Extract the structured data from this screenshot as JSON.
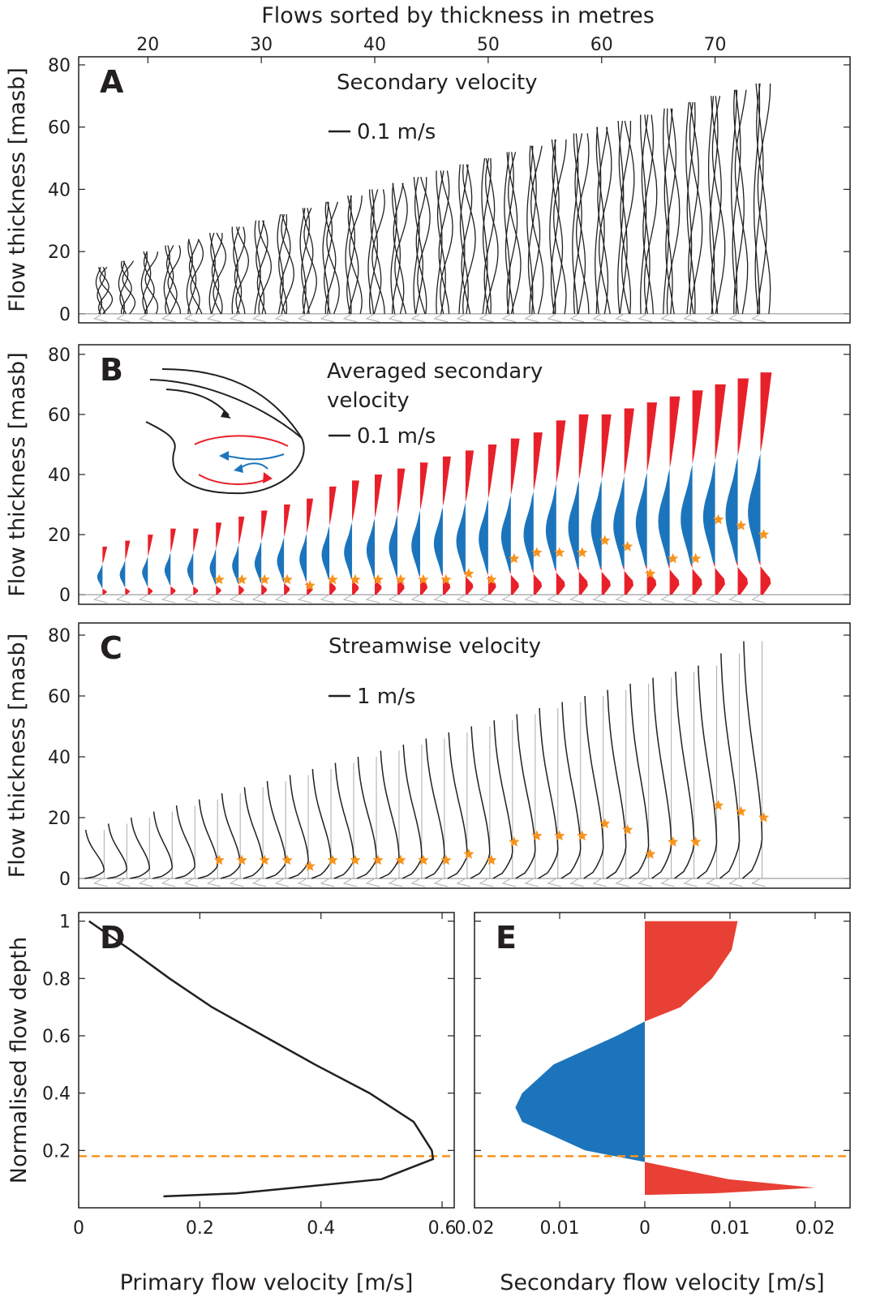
{
  "chart_data": [
    {
      "type": "line",
      "label": "A",
      "title": "Secondary velocity",
      "scale_label": "0.1 m/s",
      "xlabel": "Flows sorted by thickness in metres",
      "xlim": [
        13.9,
        81.9
      ],
      "xticks": [
        20,
        30,
        40,
        50,
        60,
        70
      ],
      "ylabel": "Flow thickness [masb]",
      "ylim": [
        -2.9,
        82.6
      ],
      "yticks": [
        0,
        20,
        40,
        60,
        80
      ],
      "x": [
        16,
        18,
        20,
        22,
        24,
        26,
        28,
        30,
        32,
        34,
        36,
        38,
        40,
        42,
        44,
        46,
        48,
        50,
        52,
        54,
        56,
        58,
        60,
        62,
        64,
        66,
        68,
        70,
        72,
        74
      ],
      "values": [
        15,
        17,
        20,
        22,
        24,
        26,
        28,
        30,
        32,
        34,
        36,
        38,
        40,
        42,
        44,
        46,
        48,
        50,
        52,
        54,
        56,
        58,
        60,
        62,
        64,
        66,
        68,
        70,
        72,
        74
      ],
      "color": "#231f20"
    },
    {
      "type": "area",
      "label": "B",
      "title": "Averaged secondary velocity",
      "scale_label": "0.1 m/s",
      "xlim": [
        13.9,
        81.9
      ],
      "ylabel": "Flow thickness [masb]",
      "ylim": [
        -3.2,
        83.2
      ],
      "yticks": [
        0,
        20,
        40,
        60,
        80
      ],
      "x": [
        16,
        18,
        20,
        22,
        24,
        26,
        28,
        30,
        32,
        34,
        36,
        38,
        40,
        42,
        44,
        46,
        48,
        50,
        52,
        54,
        56,
        58,
        60,
        62,
        64,
        66,
        68,
        70,
        72,
        74
      ],
      "values": [
        16,
        18,
        20,
        22,
        22,
        24,
        26,
        28,
        30,
        32,
        36,
        38,
        40,
        42,
        44,
        46,
        48,
        50,
        52,
        54,
        58,
        60,
        60,
        62,
        64,
        66,
        68,
        70,
        72,
        74
      ],
      "stars": [
        null,
        null,
        null,
        null,
        null,
        5,
        5,
        5,
        5,
        3,
        5,
        5,
        5,
        5,
        5,
        5,
        7,
        5,
        12,
        14,
        14,
        14,
        18,
        16,
        7,
        12,
        12,
        25,
        23,
        20
      ],
      "positive_color": "#e8202a",
      "negative_color": "#1c75bc",
      "star_color": "#f7941d"
    },
    {
      "type": "line",
      "label": "C",
      "title": "Streamwise velocity",
      "scale_label": "1 m/s",
      "xlim": [
        13.9,
        81.9
      ],
      "ylabel": "Flow thickness [masb]",
      "ylim": [
        -3.2,
        84
      ],
      "yticks": [
        0,
        20,
        40,
        60,
        80
      ],
      "x": [
        16,
        18,
        20,
        22,
        24,
        26,
        28,
        30,
        32,
        34,
        36,
        38,
        40,
        42,
        44,
        46,
        48,
        50,
        52,
        54,
        56,
        58,
        60,
        62,
        64,
        66,
        68,
        70,
        72,
        74
      ],
      "values": [
        16,
        18,
        20,
        22,
        24,
        26,
        28,
        30,
        32,
        34,
        36,
        38,
        40,
        42,
        44,
        46,
        48,
        50,
        52,
        54,
        56,
        58,
        60,
        62,
        64,
        66,
        68,
        70,
        74,
        78
      ],
      "stars": [
        null,
        null,
        null,
        null,
        null,
        6,
        6,
        6,
        6,
        4,
        6,
        6,
        6,
        6,
        6,
        6,
        8,
        6,
        12,
        14,
        14,
        14,
        18,
        16,
        8,
        12,
        12,
        24,
        22,
        20
      ],
      "color": "#231f20",
      "star_color": "#f7941d"
    },
    {
      "type": "line",
      "label": "D",
      "xlabel": "Primary flow velocity [m/s]",
      "ylabel": "Normalised flow depth",
      "xlim": [
        0,
        0.62
      ],
      "xticks": [
        0,
        0.2,
        0.4,
        0.6
      ],
      "ylim": [
        0,
        1.03
      ],
      "yticks": [
        0.2,
        0.4,
        0.6,
        0.8,
        1
      ],
      "x": [
        0.017,
        0.085,
        0.15,
        0.22,
        0.305,
        0.39,
        0.48,
        0.553,
        0.583,
        0.585,
        0.5,
        0.26,
        0.14
      ],
      "values": [
        1,
        0.9,
        0.8,
        0.7,
        0.6,
        0.5,
        0.4,
        0.3,
        0.2,
        0.17,
        0.1,
        0.05,
        0.04
      ],
      "hline": 0.18,
      "color": "#231f20",
      "hline_color": "#f7941d"
    },
    {
      "type": "area",
      "label": "E",
      "xlabel": "Secondary flow velocity [m/s]",
      "xlim": [
        -0.02,
        0.0241
      ],
      "xticks": [
        {
          "value": -0.02,
          "label": "0.02"
        },
        {
          "value": -0.01,
          "label": "0.01"
        },
        0,
        0.01,
        0.02
      ],
      "ylim": [
        0,
        1.03
      ],
      "yticks": [
        0.2,
        0.4,
        0.6,
        0.8,
        1
      ],
      "x": [
        0.0109,
        0.0102,
        0.0079,
        0.0042,
        0,
        -0.0033,
        -0.0107,
        -0.0144,
        -0.0152,
        -0.0144,
        -0.007,
        0,
        0.0098,
        0.02,
        0.0079,
        0
      ],
      "values": [
        1,
        0.9,
        0.8,
        0.7,
        0.65,
        0.6,
        0.5,
        0.4,
        0.35,
        0.3,
        0.2,
        0.16,
        0.1,
        0.07,
        0.05,
        0.045
      ],
      "hline": 0.18,
      "positive_color": "#e84035",
      "negative_color": "#1c75bc",
      "hline_color": "#f7941d"
    }
  ]
}
